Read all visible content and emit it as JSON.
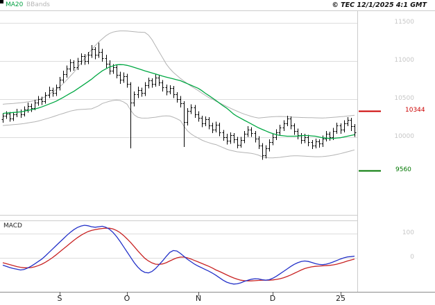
{
  "header": {
    "ma20": "MA20",
    "bbands": "BBands",
    "copyright": "© TEC 12/1/2025 4:1 GMT"
  },
  "macd_panel": {
    "title": "MACD"
  },
  "chart_data": [
    {
      "type": "candlestick",
      "panel": "price",
      "ylim": [
        8975,
        11665
      ],
      "y_ticks": [
        11500,
        11000,
        10500,
        10000
      ],
      "x_ticks": [
        {
          "label": "S",
          "index": 16
        },
        {
          "label": "O",
          "index": 35
        },
        {
          "label": "N",
          "index": 55
        },
        {
          "label": "D",
          "index": 76
        },
        {
          "label": "25",
          "index": 95
        }
      ],
      "candle_color": "#000000",
      "bars_ohlc": [
        [
          10230,
          10310,
          10190,
          10280
        ],
        [
          10280,
          10340,
          10240,
          10310
        ],
        [
          10310,
          10330,
          10200,
          10240
        ],
        [
          10240,
          10330,
          10210,
          10300
        ],
        [
          10300,
          10370,
          10260,
          10330
        ],
        [
          10330,
          10360,
          10250,
          10300
        ],
        [
          10300,
          10400,
          10270,
          10360
        ],
        [
          10360,
          10450,
          10320,
          10410
        ],
        [
          10410,
          10440,
          10330,
          10380
        ],
        [
          10380,
          10490,
          10350,
          10450
        ],
        [
          10450,
          10540,
          10410,
          10500
        ],
        [
          10500,
          10530,
          10420,
          10470
        ],
        [
          10470,
          10590,
          10440,
          10550
        ],
        [
          10550,
          10660,
          10510,
          10620
        ],
        [
          10620,
          10650,
          10530,
          10580
        ],
        [
          10580,
          10690,
          10540,
          10650
        ],
        [
          10650,
          10790,
          10610,
          10750
        ],
        [
          10750,
          10870,
          10710,
          10830
        ],
        [
          10830,
          10940,
          10780,
          10900
        ],
        [
          10900,
          11020,
          10860,
          10980
        ],
        [
          10980,
          11010,
          10870,
          10920
        ],
        [
          10920,
          11040,
          10880,
          11000
        ],
        [
          11000,
          11100,
          10950,
          11060
        ],
        [
          11060,
          11090,
          10950,
          11000
        ],
        [
          11000,
          11120,
          10960,
          11080
        ],
        [
          11080,
          11210,
          11040,
          11150
        ],
        [
          11150,
          11180,
          11020,
          11080
        ],
        [
          11080,
          11240,
          11040,
          11120
        ],
        [
          11120,
          11160,
          10990,
          11040
        ],
        [
          11040,
          11080,
          10910,
          10960
        ],
        [
          10960,
          11010,
          10820,
          10870
        ],
        [
          10870,
          10960,
          10830,
          10920
        ],
        [
          10920,
          10950,
          10770,
          10820
        ],
        [
          10820,
          10860,
          10700,
          10750
        ],
        [
          10750,
          10850,
          10710,
          10800
        ],
        [
          10800,
          10830,
          10650,
          10700
        ],
        [
          10700,
          10720,
          9850,
          10450
        ],
        [
          10450,
          10600,
          10400,
          10560
        ],
        [
          10560,
          10660,
          10510,
          10620
        ],
        [
          10620,
          10650,
          10530,
          10580
        ],
        [
          10580,
          10720,
          10540,
          10680
        ],
        [
          10680,
          10780,
          10640,
          10740
        ],
        [
          10740,
          10770,
          10650,
          10700
        ],
        [
          10700,
          10820,
          10660,
          10780
        ],
        [
          10780,
          10810,
          10670,
          10720
        ],
        [
          10720,
          10750,
          10600,
          10650
        ],
        [
          10650,
          10690,
          10550,
          10600
        ],
        [
          10600,
          10680,
          10560,
          10640
        ],
        [
          10640,
          10670,
          10510,
          10560
        ],
        [
          10560,
          10590,
          10450,
          10500
        ],
        [
          10500,
          10540,
          10390,
          10440
        ],
        [
          10440,
          10470,
          9870,
          10200
        ],
        [
          10200,
          10380,
          10150,
          10340
        ],
        [
          10340,
          10430,
          10300,
          10390
        ],
        [
          10390,
          10420,
          10250,
          10300
        ],
        [
          10300,
          10340,
          10200,
          10250
        ],
        [
          10250,
          10280,
          10130,
          10180
        ],
        [
          10180,
          10270,
          10140,
          10230
        ],
        [
          10230,
          10260,
          10100,
          10150
        ],
        [
          10150,
          10190,
          10050,
          10100
        ],
        [
          10100,
          10200,
          10060,
          10160
        ],
        [
          10160,
          10190,
          10010,
          10060
        ],
        [
          10060,
          10090,
          9950,
          10000
        ],
        [
          10000,
          10040,
          9900,
          9950
        ],
        [
          9950,
          10060,
          9910,
          10020
        ],
        [
          10020,
          10050,
          9920,
          9970
        ],
        [
          9970,
          10000,
          9850,
          9900
        ],
        [
          9900,
          10000,
          9860,
          9960
        ],
        [
          9960,
          10080,
          9920,
          10040
        ],
        [
          10040,
          10140,
          10000,
          10100
        ],
        [
          10100,
          10130,
          10000,
          10050
        ],
        [
          10050,
          10080,
          9930,
          9980
        ],
        [
          9980,
          10010,
          9840,
          9890
        ],
        [
          9890,
          9920,
          9700,
          9760
        ],
        [
          9760,
          9890,
          9720,
          9850
        ],
        [
          9850,
          9970,
          9810,
          9930
        ],
        [
          9930,
          10040,
          9890,
          10000
        ],
        [
          10000,
          10100,
          9960,
          10060
        ],
        [
          10060,
          10160,
          10020,
          10120
        ],
        [
          10120,
          10220,
          10080,
          10180
        ],
        [
          10180,
          10280,
          10140,
          10240
        ],
        [
          10240,
          10270,
          10100,
          10150
        ],
        [
          10150,
          10180,
          10030,
          10080
        ],
        [
          10080,
          10110,
          9970,
          10020
        ],
        [
          10020,
          10050,
          9910,
          9960
        ],
        [
          9960,
          10040,
          9920,
          10000
        ],
        [
          10000,
          10030,
          9880,
          9930
        ],
        [
          9930,
          9960,
          9840,
          9890
        ],
        [
          9890,
          9980,
          9850,
          9940
        ],
        [
          9940,
          9970,
          9860,
          9910
        ],
        [
          9910,
          10020,
          9870,
          9980
        ],
        [
          9980,
          10080,
          9940,
          10040
        ],
        [
          10040,
          10070,
          9950,
          10000
        ],
        [
          10000,
          10120,
          9960,
          10080
        ],
        [
          10080,
          10190,
          10040,
          10150
        ],
        [
          10150,
          10180,
          10040,
          10100
        ],
        [
          10100,
          10220,
          10060,
          10180
        ],
        [
          10180,
          10260,
          10140,
          10220
        ],
        [
          10220,
          10250,
          10080,
          10140
        ],
        [
          10140,
          10170,
          10000,
          10060
        ]
      ],
      "series": [
        {
          "name": "MA20",
          "color": "#00a843",
          "values": [
            10310,
            10315,
            10318,
            10322,
            10326,
            10330,
            10338,
            10348,
            10358,
            10368,
            10380,
            10396,
            10414,
            10432,
            10450,
            10470,
            10495,
            10520,
            10548,
            10574,
            10600,
            10632,
            10664,
            10696,
            10728,
            10760,
            10800,
            10835,
            10870,
            10895,
            10920,
            10935,
            10950,
            10952,
            10950,
            10942,
            10930,
            10915,
            10900,
            10885,
            10870,
            10856,
            10842,
            10828,
            10814,
            10800,
            10788,
            10776,
            10764,
            10752,
            10740,
            10720,
            10700,
            10680,
            10660,
            10640,
            10610,
            10575,
            10545,
            10512,
            10480,
            10445,
            10410,
            10380,
            10340,
            10300,
            10270,
            10245,
            10220,
            10195,
            10170,
            10145,
            10120,
            10100,
            10080,
            10060,
            10045,
            10030,
            10020,
            10015,
            10010,
            10010,
            10010,
            10012,
            10016,
            10020,
            10018,
            10014,
            10010,
            10000,
            9990,
            9985,
            9980,
            9982,
            9986,
            9990,
            10000,
            10010,
            10020,
            10030
          ]
        },
        {
          "name": "BB_upper",
          "color": "#b3b3b3",
          "values": [
            10430,
            10435,
            10438,
            10440,
            10445,
            10450,
            10455,
            10462,
            10470,
            10480,
            10490,
            10510,
            10530,
            10560,
            10590,
            10620,
            10660,
            10700,
            10750,
            10800,
            10850,
            10910,
            10970,
            11030,
            11090,
            11150,
            11200,
            11250,
            11290,
            11330,
            11360,
            11380,
            11390,
            11395,
            11395,
            11393,
            11390,
            11385,
            11380,
            11378,
            11375,
            11340,
            11280,
            11200,
            11120,
            11040,
            10960,
            10900,
            10850,
            10810,
            10770,
            10735,
            10700,
            10668,
            10640,
            10610,
            10578,
            10548,
            10518,
            10498,
            10470,
            10448,
            10425,
            10402,
            10380,
            10358,
            10338,
            10318,
            10300,
            10285,
            10270,
            10258,
            10250,
            10253,
            10258,
            10263,
            10266,
            10269,
            10270,
            10269,
            10266,
            10263,
            10260,
            10258,
            10256,
            10255,
            10254,
            10253,
            10252,
            10251,
            10250,
            10252,
            10255,
            10258,
            10262,
            10266,
            10270,
            10275,
            10280,
            10285
          ]
        },
        {
          "name": "BB_lower",
          "color": "#b3b3b3",
          "values": [
            10150,
            10155,
            10158,
            10162,
            10166,
            10170,
            10176,
            10184,
            10192,
            10200,
            10210,
            10222,
            10236,
            10250,
            10264,
            10280,
            10295,
            10310,
            10325,
            10340,
            10350,
            10358,
            10362,
            10365,
            10368,
            10370,
            10390,
            10410,
            10440,
            10455,
            10470,
            10480,
            10485,
            10480,
            10460,
            10430,
            10350,
            10290,
            10260,
            10250,
            10248,
            10250,
            10255,
            10260,
            10268,
            10275,
            10278,
            10275,
            10260,
            10240,
            10215,
            10140,
            10080,
            10040,
            10010,
            9985,
            9960,
            9940,
            9925,
            9910,
            9900,
            9880,
            9860,
            9840,
            9825,
            9815,
            9805,
            9800,
            9795,
            9790,
            9785,
            9775,
            9760,
            9740,
            9730,
            9725,
            9725,
            9728,
            9732,
            9738,
            9745,
            9750,
            9752,
            9752,
            9750,
            9748,
            9745,
            9742,
            9740,
            9740,
            9742,
            9746,
            9752,
            9760,
            9770,
            9780,
            9792,
            9805,
            9818,
            9830
          ]
        }
      ],
      "levels": [
        {
          "name": "resistance",
          "value": 10344,
          "label": "10344",
          "color": "#cc0000"
        },
        {
          "name": "support",
          "value": 9560,
          "label": "9560",
          "color": "#007700"
        }
      ]
    },
    {
      "type": "line",
      "panel": "macd",
      "title": "MACD",
      "ylim": [
        -140,
        154
      ],
      "y_ticks": [
        100,
        0
      ],
      "series": [
        {
          "name": "MACD",
          "color": "#2230c8",
          "values": [
            -30,
            -35,
            -40,
            -44,
            -47,
            -50,
            -48,
            -42,
            -34,
            -25,
            -15,
            -5,
            8,
            22,
            36,
            50,
            64,
            78,
            92,
            105,
            116,
            125,
            131,
            134,
            132,
            128,
            126,
            128,
            130,
            126,
            118,
            105,
            88,
            68,
            46,
            24,
            2,
            -20,
            -38,
            -52,
            -60,
            -62,
            -56,
            -44,
            -28,
            -12,
            6,
            22,
            30,
            28,
            18,
            6,
            -6,
            -16,
            -26,
            -34,
            -41,
            -48,
            -55,
            -63,
            -72,
            -82,
            -92,
            -100,
            -105,
            -108,
            -107,
            -103,
            -97,
            -92,
            -88,
            -86,
            -87,
            -90,
            -92,
            -90,
            -84,
            -76,
            -66,
            -56,
            -46,
            -36,
            -27,
            -20,
            -15,
            -13,
            -15,
            -19,
            -24,
            -27,
            -28,
            -26,
            -22,
            -17,
            -11,
            -5,
            0,
            4,
            5,
            7
          ]
        },
        {
          "name": "Signal",
          "color": "#c82222",
          "values": [
            -20,
            -24,
            -28,
            -32,
            -36,
            -39,
            -41,
            -41,
            -40,
            -37,
            -32,
            -26,
            -18,
            -9,
            1,
            12,
            24,
            36,
            48,
            60,
            72,
            83,
            93,
            101,
            108,
            113,
            116,
            119,
            121,
            122,
            122,
            119,
            113,
            104,
            92,
            78,
            63,
            46,
            29,
            13,
            -2,
            -13,
            -21,
            -26,
            -27,
            -25,
            -20,
            -13,
            -6,
            0,
            3,
            3,
            0,
            -5,
            -11,
            -17,
            -23,
            -29,
            -35,
            -42,
            -50,
            -56,
            -63,
            -70,
            -77,
            -83,
            -88,
            -92,
            -94,
            -95,
            -95,
            -94,
            -93,
            -92,
            -92,
            -92,
            -91,
            -89,
            -86,
            -82,
            -77,
            -71,
            -64,
            -57,
            -50,
            -44,
            -40,
            -37,
            -35,
            -34,
            -33,
            -32,
            -31,
            -29,
            -26,
            -22,
            -18,
            -13,
            -9,
            -5
          ]
        }
      ]
    }
  ]
}
